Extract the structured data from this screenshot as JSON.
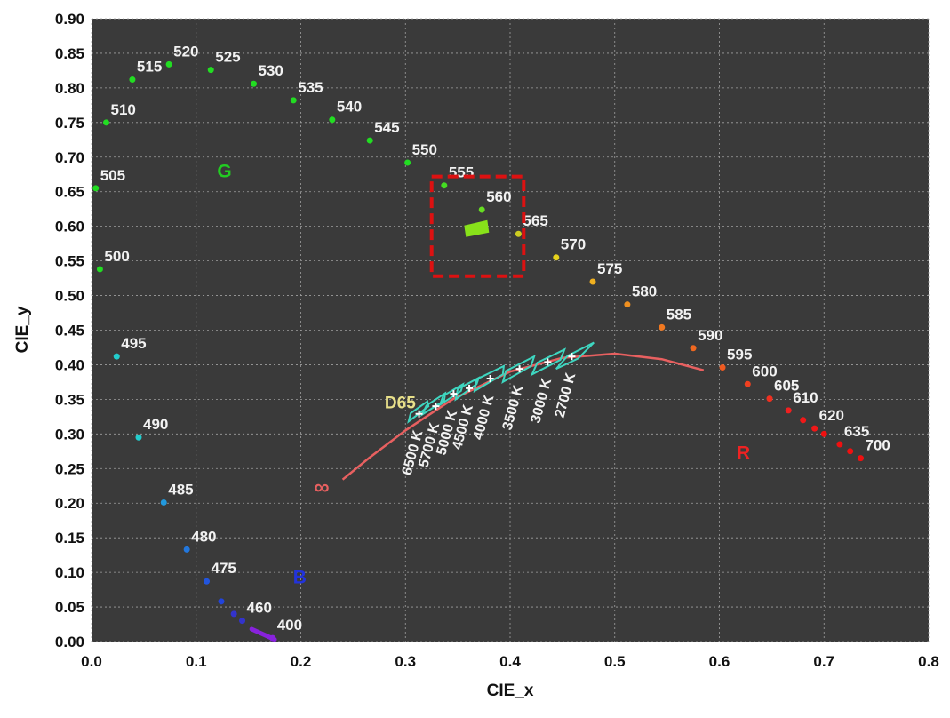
{
  "chart_data": {
    "type": "scatter",
    "xlabel": "CIE_x",
    "ylabel": "CIE_y",
    "xlim": [
      0.0,
      0.8
    ],
    "ylim": [
      0.0,
      0.9
    ],
    "xticks": [
      "0.0",
      "0.1",
      "0.2",
      "0.3",
      "0.4",
      "0.5",
      "0.6",
      "0.7",
      "0.8"
    ],
    "yticks": [
      "0.00",
      "0.05",
      "0.10",
      "0.15",
      "0.20",
      "0.25",
      "0.30",
      "0.35",
      "0.40",
      "0.45",
      "0.50",
      "0.55",
      "0.60",
      "0.65",
      "0.70",
      "0.75",
      "0.80",
      "0.85",
      "0.90"
    ],
    "grid": true,
    "background": "#3a3a3a",
    "spectral_locus": [
      {
        "label": "520",
        "x": 0.074,
        "y": 0.834,
        "color": "#22dd22"
      },
      {
        "label": "515",
        "x": 0.039,
        "y": 0.812,
        "color": "#22dd22"
      },
      {
        "label": "525",
        "x": 0.114,
        "y": 0.826,
        "color": "#22dd22"
      },
      {
        "label": "530",
        "x": 0.155,
        "y": 0.806,
        "color": "#22dd22"
      },
      {
        "label": "535",
        "x": 0.193,
        "y": 0.782,
        "color": "#22dd22"
      },
      {
        "label": "540",
        "x": 0.23,
        "y": 0.754,
        "color": "#22dd22"
      },
      {
        "label": "510",
        "x": 0.014,
        "y": 0.75,
        "color": "#22dd22"
      },
      {
        "label": "545",
        "x": 0.266,
        "y": 0.724,
        "color": "#22dd22"
      },
      {
        "label": "550",
        "x": 0.302,
        "y": 0.692,
        "color": "#22dd22"
      },
      {
        "label": "505",
        "x": 0.004,
        "y": 0.655,
        "color": "#22dd22"
      },
      {
        "label": "555",
        "x": 0.337,
        "y": 0.659,
        "color": "#44dd22"
      },
      {
        "label": "560",
        "x": 0.373,
        "y": 0.624,
        "color": "#66dd22"
      },
      {
        "label": "565",
        "x": 0.408,
        "y": 0.589,
        "color": "#cccc22"
      },
      {
        "label": "570",
        "x": 0.444,
        "y": 0.555,
        "color": "#e6d21c"
      },
      {
        "label": "500",
        "x": 0.008,
        "y": 0.538,
        "color": "#22dd22"
      },
      {
        "label": "575",
        "x": 0.479,
        "y": 0.52,
        "color": "#f0b020"
      },
      {
        "label": "580",
        "x": 0.512,
        "y": 0.487,
        "color": "#f09020"
      },
      {
        "label": "585",
        "x": 0.545,
        "y": 0.454,
        "color": "#f07820"
      },
      {
        "label": "590",
        "x": 0.575,
        "y": 0.424,
        "color": "#f06820"
      },
      {
        "label": "495",
        "x": 0.024,
        "y": 0.412,
        "color": "#22cccc"
      },
      {
        "label": "595",
        "x": 0.603,
        "y": 0.396,
        "color": "#f05a20"
      },
      {
        "label": "600",
        "x": 0.627,
        "y": 0.372,
        "color": "#f04020"
      },
      {
        "label": "605",
        "x": 0.648,
        "y": 0.351,
        "color": "#f03020"
      },
      {
        "label": "610",
        "x": 0.666,
        "y": 0.334,
        "color": "#f02020"
      },
      {
        "label": "620",
        "x": 0.691,
        "y": 0.308,
        "color": "#f01818"
      },
      {
        "label": "635",
        "x": 0.715,
        "y": 0.285,
        "color": "#f01010"
      },
      {
        "label": "700",
        "x": 0.735,
        "y": 0.265,
        "color": "#f01010"
      },
      {
        "label": "490",
        "x": 0.045,
        "y": 0.295,
        "color": "#22cccc"
      },
      {
        "label": "485",
        "x": 0.069,
        "y": 0.201,
        "color": "#2299dd"
      },
      {
        "label": "480",
        "x": 0.091,
        "y": 0.133,
        "color": "#2277dd"
      },
      {
        "label": "475",
        "x": 0.11,
        "y": 0.087,
        "color": "#2255dd"
      },
      {
        "label": "460",
        "x": 0.144,
        "y": 0.03,
        "color": "#3333cc"
      },
      {
        "label": "400",
        "x": 0.173,
        "y": 0.005,
        "color": "#8822dd"
      }
    ],
    "extra_locus_points": [
      {
        "x": 0.124,
        "y": 0.058,
        "color": "#2244dd"
      },
      {
        "x": 0.136,
        "y": 0.04,
        "color": "#3333cc"
      },
      {
        "x": 0.68,
        "y": 0.32,
        "color": "#f01818"
      },
      {
        "x": 0.7,
        "y": 0.3,
        "color": "#f01010"
      },
      {
        "x": 0.725,
        "y": 0.275,
        "color": "#f01010"
      }
    ],
    "violet_segment": [
      [
        0.153,
        0.018
      ],
      [
        0.175,
        0.003
      ]
    ],
    "planckian_locus": [
      [
        0.24,
        0.234
      ],
      [
        0.265,
        0.265
      ],
      [
        0.3,
        0.305
      ],
      [
        0.345,
        0.35
      ],
      [
        0.4,
        0.39
      ],
      [
        0.45,
        0.41
      ],
      [
        0.5,
        0.416
      ],
      [
        0.545,
        0.408
      ],
      [
        0.585,
        0.392
      ]
    ],
    "infinity_marker": {
      "label": "∞",
      "x": 0.22,
      "y": 0.222
    },
    "cct_points": [
      {
        "label": "6500 K",
        "x": 0.313,
        "y": 0.329
      },
      {
        "label": "5700 K",
        "x": 0.329,
        "y": 0.34
      },
      {
        "label": "5000 K",
        "x": 0.346,
        "y": 0.358
      },
      {
        "label": "4500 K",
        "x": 0.361,
        "y": 0.366
      },
      {
        "label": "4000 K",
        "x": 0.381,
        "y": 0.38
      },
      {
        "label": "3500 K",
        "x": 0.409,
        "y": 0.394
      },
      {
        "label": "3000 K",
        "x": 0.436,
        "y": 0.404
      },
      {
        "label": "2700 K",
        "x": 0.459,
        "y": 0.412
      }
    ],
    "quadrangles": [
      [
        [
          0.303,
          0.318
        ],
        [
          0.322,
          0.34
        ],
        [
          0.321,
          0.347
        ],
        [
          0.305,
          0.33
        ]
      ],
      [
        [
          0.316,
          0.328
        ],
        [
          0.337,
          0.348
        ],
        [
          0.338,
          0.359
        ],
        [
          0.32,
          0.341
        ]
      ],
      [
        [
          0.333,
          0.342
        ],
        [
          0.353,
          0.362
        ],
        [
          0.355,
          0.372
        ],
        [
          0.336,
          0.355
        ]
      ],
      [
        [
          0.348,
          0.35
        ],
        [
          0.368,
          0.372
        ],
        [
          0.37,
          0.381
        ],
        [
          0.35,
          0.365
        ]
      ],
      [
        [
          0.366,
          0.362
        ],
        [
          0.393,
          0.386
        ],
        [
          0.394,
          0.398
        ],
        [
          0.368,
          0.379
        ]
      ],
      [
        [
          0.393,
          0.375
        ],
        [
          0.42,
          0.398
        ],
        [
          0.423,
          0.412
        ],
        [
          0.396,
          0.391
        ]
      ],
      [
        [
          0.421,
          0.386
        ],
        [
          0.448,
          0.407
        ],
        [
          0.452,
          0.422
        ],
        [
          0.426,
          0.403
        ]
      ],
      [
        [
          0.444,
          0.394
        ],
        [
          0.465,
          0.409
        ],
        [
          0.48,
          0.432
        ],
        [
          0.455,
          0.413
        ]
      ]
    ],
    "d65_label": {
      "label": "D65",
      "x": 0.295,
      "y": 0.345
    },
    "green_cluster": {
      "x": 0.368,
      "y": 0.596
    },
    "highlight_box": {
      "x0": 0.325,
      "y0": 0.528,
      "x1": 0.413,
      "y1": 0.672,
      "color": "#dd1111"
    },
    "region_labels": [
      {
        "label": "G",
        "x": 0.127,
        "y": 0.68,
        "color": "#22cc22"
      },
      {
        "label": "B",
        "x": 0.199,
        "y": 0.093,
        "color": "#2233dd"
      },
      {
        "label": "R",
        "x": 0.623,
        "y": 0.273,
        "color": "#ee2222"
      }
    ]
  }
}
